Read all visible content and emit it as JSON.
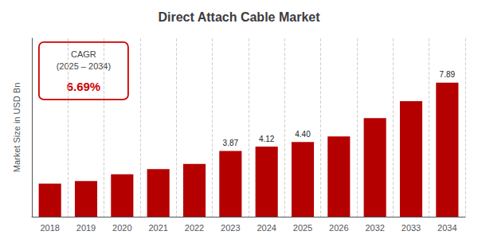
{
  "chart_data": {
    "type": "bar",
    "title": "Direct Attach Cable Market",
    "y_label": "Market Size in USD Bn",
    "categories": [
      "2018",
      "2019",
      "2020",
      "2021",
      "2022",
      "2023",
      "2024",
      "2025",
      "2026",
      "2032",
      "2033",
      "2034"
    ],
    "values": [
      1.95,
      2.1,
      2.5,
      2.8,
      3.1,
      3.87,
      4.12,
      4.4,
      4.72,
      5.8,
      6.8,
      7.89
    ],
    "value_labels": [
      null,
      null,
      null,
      null,
      null,
      "3.87",
      "4.12",
      "4.40",
      null,
      null,
      null,
      "7.89"
    ],
    "color": "#b50000",
    "ylim": [
      0,
      10.5
    ],
    "tick_labels": "x",
    "grid": true,
    "annotations": [
      {
        "text": "CAGR\n(2025 – 2034)"
      },
      {
        "text": "6.69%",
        "color": "#cc0000"
      }
    ]
  }
}
